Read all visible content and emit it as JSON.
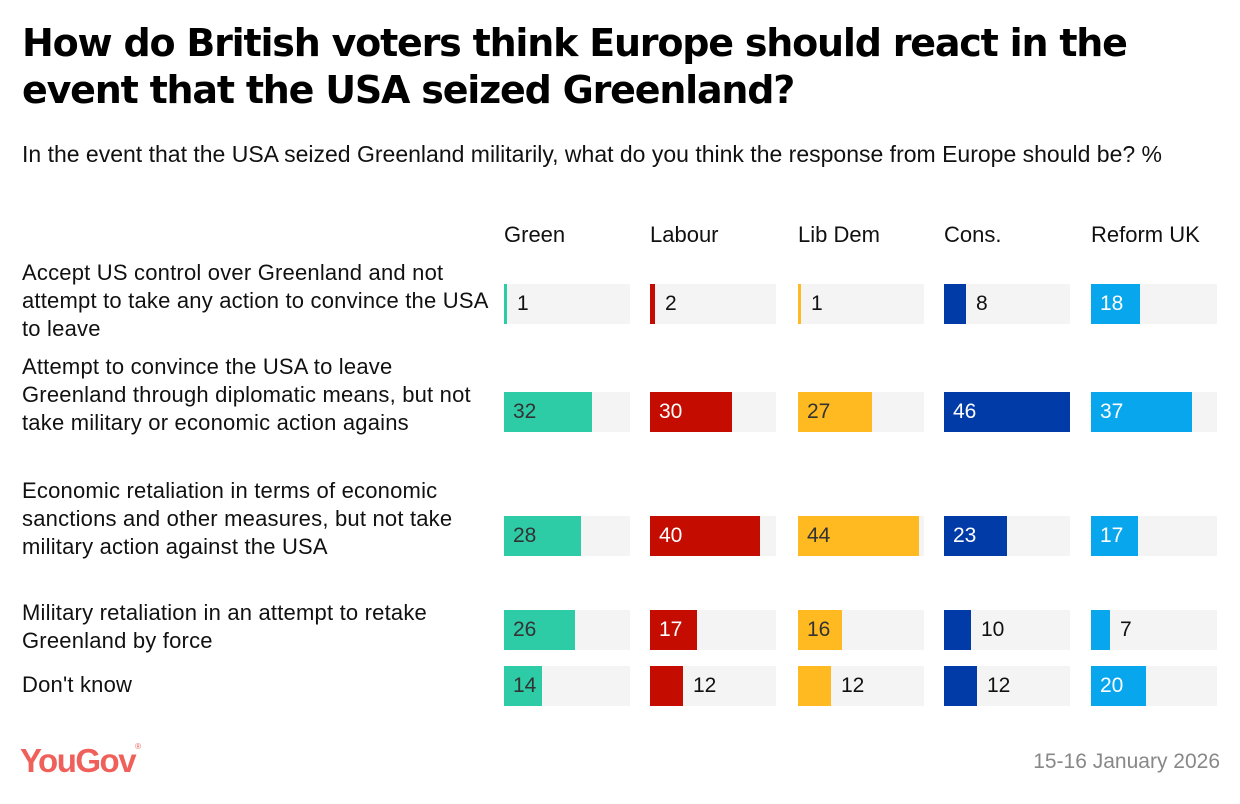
{
  "header": {
    "title": "How do British voters think Europe should react in the event that the USA seized Greenland?",
    "subtitle": "In the event that the USA seized Greenland militarily, what do you think the response from Europe should be? %"
  },
  "footer": {
    "logo": "YouGov",
    "logo_mark": "®",
    "date": "15-16 January 2026"
  },
  "chart_data": {
    "type": "bar",
    "title": "How do British voters think Europe should react in the event that the USA seized Greenland?",
    "subtitle": "In the event that the USA seized Greenland militarily, what do you think the response from Europe should be? %",
    "categories": [
      "Accept US control over Greenland and not attempt to take any action to convince the USA to leave",
      "Attempt to convince the USA to leave Greenland through diplomatic means, but not take military or economic action agains",
      "Economic retaliation in terms of economic sanctions and other measures, but not take military action against the USA",
      "Military retaliation in an attempt to retake Greenland by force",
      "Don't know"
    ],
    "xlim": [
      0,
      46
    ],
    "grid": false,
    "legend": "column-headers-top",
    "series": [
      {
        "name": "Green",
        "color": "#2ecba7",
        "text_color": "#333333",
        "values": [
          1,
          32,
          28,
          26,
          14
        ]
      },
      {
        "name": "Labour",
        "color": "#c40d00",
        "text_color": "#ffffff",
        "values": [
          2,
          30,
          40,
          17,
          12
        ]
      },
      {
        "name": "Lib Dem",
        "color": "#ffba22",
        "text_color": "#333333",
        "values": [
          1,
          27,
          44,
          16,
          12
        ]
      },
      {
        "name": "Cons.",
        "color": "#003ba8",
        "text_color": "#ffffff",
        "values": [
          8,
          46,
          23,
          10,
          12
        ]
      },
      {
        "name": "Reform UK",
        "color": "#07a6ed",
        "text_color": "#ffffff",
        "values": [
          18,
          37,
          17,
          7,
          20
        ]
      }
    ]
  }
}
